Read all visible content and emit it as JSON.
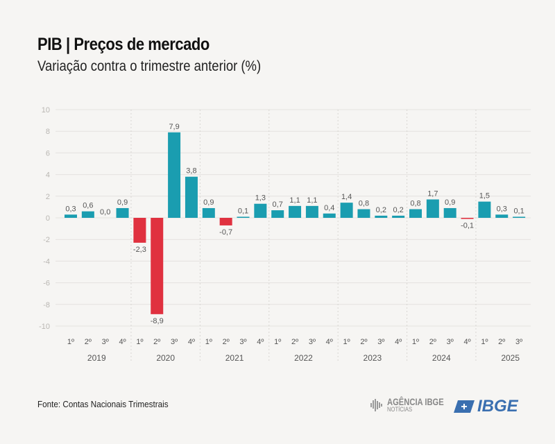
{
  "header": {
    "title": "PIB | Preços de mercado",
    "subtitle": "Variação contra o trimestre anterior (%)"
  },
  "footer": {
    "source": "Fonte: Contas Nacionais Trimestrais",
    "agencia_logo": "AGÊNCIA IBGE",
    "agencia_sub": "NOTÍCIAS",
    "ibge_logo": "IBGE"
  },
  "colors": {
    "positive": "#1a9db0",
    "negative": "#e0313f",
    "grid": "#e4e2df",
    "tick": "#b9b6b2",
    "label": "#555555"
  },
  "chart_data": {
    "type": "bar",
    "title": "PIB | Preços de mercado",
    "subtitle": "Variação contra o trimestre anterior (%)",
    "ylim": [
      -10,
      10
    ],
    "yticks": [
      10,
      8,
      6,
      4,
      2,
      0,
      -2,
      -4,
      -6,
      -8,
      -10
    ],
    "grid": true,
    "years": [
      "2019",
      "2020",
      "2021",
      "2022",
      "2023",
      "2024",
      "2025"
    ],
    "categories": [
      "1º",
      "2º",
      "3º",
      "4º",
      "1º",
      "2º",
      "3º",
      "4º",
      "1º",
      "2º",
      "3º",
      "4º",
      "1º",
      "2º",
      "3º",
      "4º",
      "1º",
      "2º",
      "3º",
      "4º",
      "1º",
      "2º",
      "3º",
      "4º",
      "1º",
      "2º",
      "3º"
    ],
    "category_years": [
      "2019",
      "2019",
      "2019",
      "2019",
      "2020",
      "2020",
      "2020",
      "2020",
      "2021",
      "2021",
      "2021",
      "2021",
      "2022",
      "2022",
      "2022",
      "2022",
      "2023",
      "2023",
      "2023",
      "2023",
      "2024",
      "2024",
      "2024",
      "2024",
      "2025",
      "2025",
      "2025"
    ],
    "values": [
      0.3,
      0.6,
      0.0,
      0.9,
      -2.3,
      -8.9,
      7.9,
      3.8,
      0.9,
      -0.7,
      0.1,
      1.3,
      0.7,
      1.1,
      1.1,
      0.4,
      1.4,
      0.8,
      0.2,
      0.2,
      0.8,
      1.7,
      0.9,
      -0.1,
      1.5,
      0.3,
      0.1
    ],
    "value_labels": [
      "0,3",
      "0,6",
      "0,0",
      "0,9",
      "-2,3",
      "-8,9",
      "7,9",
      "3,8",
      "0,9",
      "-0,7",
      "0,1",
      "1,3",
      "0,7",
      "1,1",
      "1,1",
      "0,4",
      "1,4",
      "0,8",
      "0,2",
      "0,2",
      "0,8",
      "1,7",
      "0,9",
      "-0,1",
      "1,5",
      "0,3",
      "0,1"
    ]
  }
}
